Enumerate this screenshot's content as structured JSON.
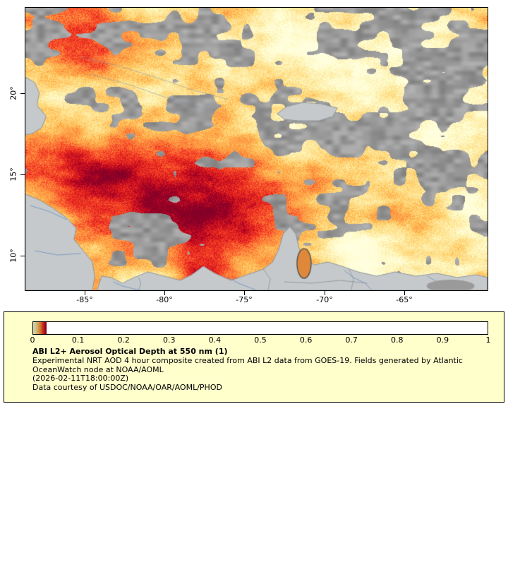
{
  "map": {
    "y_axis": {
      "ticks": [
        "20°",
        "15°",
        "10°"
      ]
    },
    "x_axis": {
      "ticks": [
        "-85°",
        "-80°",
        "-75°",
        "-70°",
        "-65°"
      ]
    }
  },
  "legend": {
    "colorbar_ticks": [
      "0",
      "0.1",
      "0.2",
      "0.3",
      "0.4",
      "0.5",
      "0.6",
      "0.7",
      "0.8",
      "0.9",
      "1"
    ],
    "title": "ABI L2+ Aerosol Optical Depth at 550 nm (1)",
    "description_line_1": "Experimental NRT AOD 4 hour composite created from ABI L2 data from GOES-19. Fields generated by Atlantic",
    "description_line_2": "OceanWatch node at NOAA/AOML",
    "timestamp": "(2026-02-11T18:00:00Z)",
    "courtesy": "Data courtesy of USDOC/NOAA/OAR/AOML/PHOD"
  },
  "colors": {
    "colormap_stops": [
      "#ffffe0",
      "#fffac4",
      "#fee79d",
      "#fed876",
      "#feb24c",
      "#fd9843",
      "#fc6430",
      "#f03523",
      "#d7151d",
      "#a50026",
      "#800026"
    ],
    "legend_background": "#ffffcc",
    "land_fill": "#c6c9cb",
    "land_border": "#8f969b",
    "cloud_gray": "#8c8c8c",
    "river_blue": "#7b9cc4",
    "lake_fill": "#e0883a"
  },
  "chart_data": {
    "type": "heatmap",
    "title": "ABI L2+ Aerosol Optical Depth at 550 nm (1)",
    "colorbar": {
      "range": [
        0,
        1
      ],
      "tick_values": [
        0,
        0.1,
        0.2,
        0.3,
        0.4,
        0.5,
        0.6,
        0.7,
        0.8,
        0.9,
        1
      ]
    },
    "x_axis": {
      "ticks_deg": [
        -85,
        -80,
        -75,
        -70,
        -65
      ]
    },
    "y_axis": {
      "ticks_deg": [
        20,
        15,
        10
      ]
    }
  }
}
